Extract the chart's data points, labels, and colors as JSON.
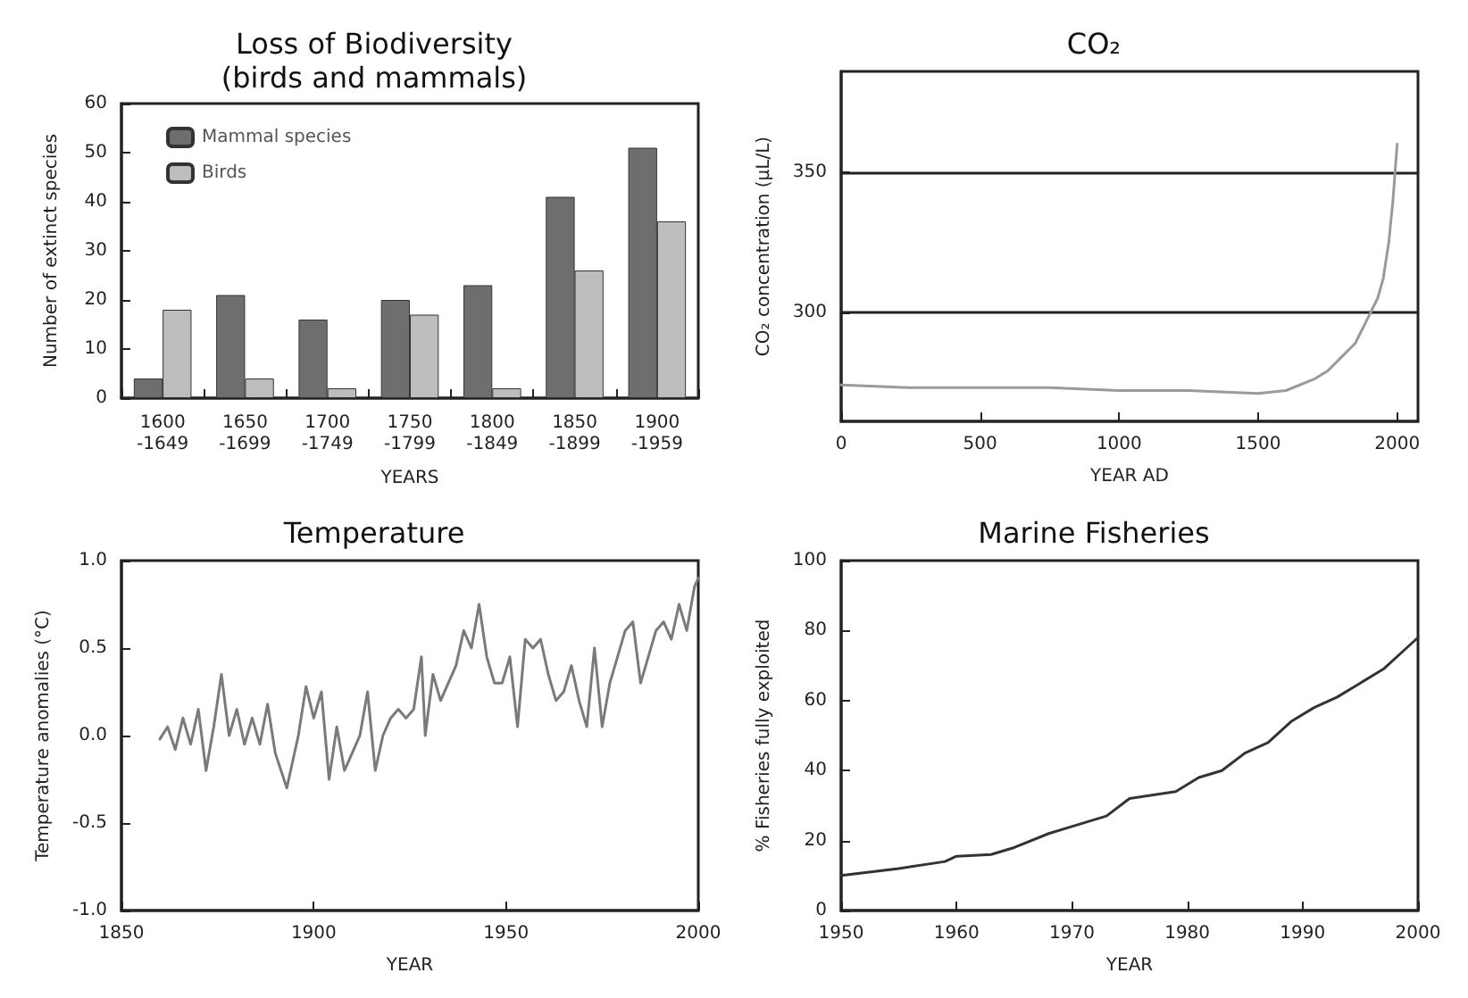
{
  "chart_data": [
    {
      "type": "bar",
      "title": "Loss of Biodiversity\n(birds and mammals)",
      "xlabel": "YEARS",
      "ylabel": "Number of extinct species",
      "categories": [
        "1600\n-1649",
        "1650\n-1699",
        "1700\n-1749",
        "1750\n-1799",
        "1800\n-1849",
        "1850\n-1899",
        "1900\n-1959"
      ],
      "series": [
        {
          "name": "Mammal species",
          "color": "#6e6e6e",
          "values": [
            4,
            21,
            16,
            20,
            23,
            41,
            51
          ]
        },
        {
          "name": "Birds",
          "color": "#bdbdbd",
          "values": [
            18,
            4,
            2,
            17,
            2,
            26,
            36
          ]
        }
      ],
      "ylim": [
        0,
        60
      ],
      "yticks": [
        0,
        10,
        20,
        30,
        40,
        50,
        60
      ],
      "legend": "top left",
      "grid": false
    },
    {
      "type": "line",
      "title": "CO₂",
      "xlabel": "YEAR AD",
      "ylabel": "CO₂ concentration (μL/L)",
      "x": [
        0,
        250,
        500,
        750,
        1000,
        1250,
        1500,
        1600,
        1700,
        1750,
        1800,
        1850,
        1900,
        1930,
        1950,
        1970,
        1985,
        2000
      ],
      "series": [
        {
          "color": "#9a9a9a",
          "values": [
            274,
            273,
            273,
            273,
            272,
            272,
            271,
            272,
            276,
            279,
            284,
            289,
            299,
            305,
            312,
            325,
            340,
            360
          ]
        }
      ],
      "xlim": [
        0,
        2075
      ],
      "xticks": [
        0,
        500,
        1000,
        1500,
        2000
      ],
      "ylim": [
        261,
        386
      ],
      "yticks": [
        300,
        350
      ],
      "grid": "y",
      "marker": "none"
    },
    {
      "type": "line",
      "title": "Temperature",
      "xlabel": "YEAR",
      "ylabel": "Temperature anomalies (°C)",
      "x": [
        1860,
        1862,
        1864,
        1866,
        1868,
        1870,
        1872,
        1874,
        1876,
        1878,
        1880,
        1882,
        1884,
        1886,
        1888,
        1890,
        1893,
        1896,
        1898,
        1900,
        1902,
        1904,
        1906,
        1908,
        1910,
        1912,
        1914,
        1916,
        1918,
        1920,
        1922,
        1924,
        1926,
        1928,
        1929,
        1931,
        1933,
        1935,
        1937,
        1939,
        1941,
        1943,
        1945,
        1947,
        1949,
        1951,
        1953,
        1955,
        1957,
        1959,
        1961,
        1963,
        1965,
        1967,
        1969,
        1971,
        1973,
        1975,
        1977,
        1979,
        1981,
        1983,
        1985,
        1987,
        1989,
        1991,
        1993,
        1995,
        1997,
        1999,
        2000
      ],
      "series": [
        {
          "color": "#7a7a7a",
          "values": [
            -0.02,
            0.05,
            -0.08,
            0.1,
            -0.05,
            0.15,
            -0.2,
            0.05,
            0.35,
            0.0,
            0.15,
            -0.05,
            0.1,
            -0.05,
            0.18,
            -0.1,
            -0.3,
            0.0,
            0.28,
            0.1,
            0.25,
            -0.25,
            0.05,
            -0.2,
            -0.1,
            0.0,
            0.25,
            -0.2,
            0.0,
            0.1,
            0.15,
            0.1,
            0.15,
            0.45,
            0.0,
            0.35,
            0.2,
            0.3,
            0.4,
            0.6,
            0.5,
            0.75,
            0.45,
            0.3,
            0.3,
            0.45,
            0.05,
            0.55,
            0.5,
            0.55,
            0.35,
            0.2,
            0.25,
            0.4,
            0.2,
            0.05,
            0.5,
            0.05,
            0.3,
            0.45,
            0.6,
            0.65,
            0.3,
            0.45,
            0.6,
            0.65,
            0.55,
            0.75,
            0.6,
            0.85,
            0.9
          ]
        }
      ],
      "xlim": [
        1850,
        2000
      ],
      "xticks": [
        1850,
        1900,
        1950,
        2000
      ],
      "ylim": [
        -1,
        1
      ],
      "yticks": [
        {
          "value": -1,
          "label": "-1.0"
        },
        {
          "value": -0.5,
          "label": "-0.5"
        },
        {
          "value": 0,
          "label": "0.0"
        },
        {
          "value": 0.5,
          "label": "0.5"
        },
        {
          "value": 1,
          "label": "1.0"
        }
      ],
      "grid": false,
      "marker": "none"
    },
    {
      "type": "line",
      "title": "Marine Fisheries",
      "xlabel": "YEAR",
      "ylabel": "% Fisheries fully exploited",
      "x": [
        1950,
        1955,
        1959,
        1960,
        1963,
        1965,
        1968,
        1970,
        1973,
        1975,
        1979,
        1981,
        1983,
        1985,
        1987,
        1989,
        1991,
        1993,
        1995,
        1997,
        1999,
        2000
      ],
      "series": [
        {
          "color": "#333333",
          "values": [
            10,
            12,
            14,
            15.5,
            16,
            18,
            22,
            24,
            27,
            32,
            34,
            38,
            40,
            45,
            48,
            54,
            58,
            61,
            65,
            69,
            75,
            78
          ]
        }
      ],
      "xlim": [
        1950,
        2000
      ],
      "xticks": [
        1950,
        1960,
        1970,
        1980,
        1990,
        2000
      ],
      "ylim": [
        0,
        100
      ],
      "yticks": [
        0,
        20,
        40,
        60,
        80,
        100
      ],
      "grid": false,
      "marker": "none"
    }
  ]
}
